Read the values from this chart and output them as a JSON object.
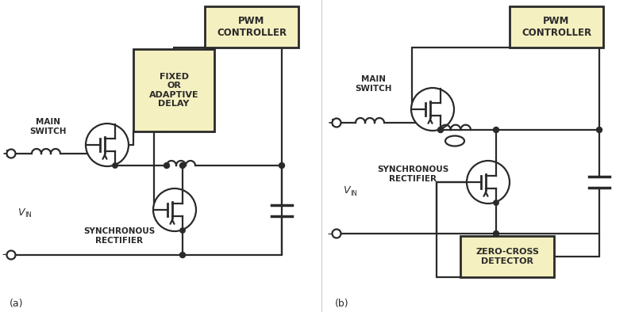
{
  "bg_color": "#ffffff",
  "line_color": "#2a2a2a",
  "box_fill": "#f5f0c0",
  "box_edge": "#2a2a2a",
  "pwm_text": "PWM\nCONTROLLER",
  "delay_text": "FIXED\nOR\nADAPTIVE\nDELAY",
  "zero_cross_text": "ZERO-CROSS\nDETECTOR",
  "main_switch_text": "MAIN\nSWITCH",
  "sync_rect_text": "SYNCHRONOUS\nRECTIFIER",
  "label_a": "(a)",
  "label_b": "(b)"
}
